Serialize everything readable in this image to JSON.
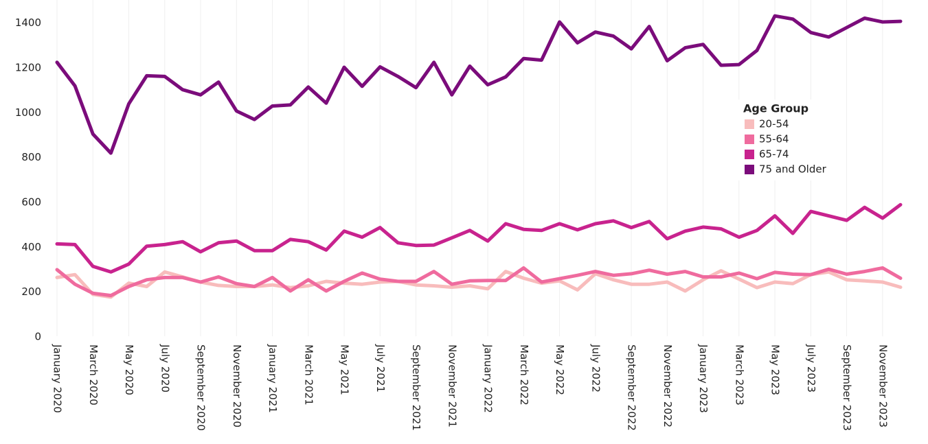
{
  "chart_data": {
    "type": "line",
    "categories": [
      "January 2020",
      null,
      "March 2020",
      null,
      "May 2020",
      null,
      "July 2020",
      null,
      "September 2020",
      null,
      "November 2020",
      null,
      "January 2021",
      null,
      "March 2021",
      null,
      "May 2021",
      null,
      "July 2021",
      null,
      "September 2021",
      null,
      "November 2021",
      null,
      "January 2022",
      null,
      "March 2022",
      null,
      "May 2022",
      null,
      "July 2022",
      null,
      "September 2022",
      null,
      "November 2022",
      null,
      "January 2023",
      null,
      "March 2023",
      null,
      "May 2023",
      null,
      "July 2023",
      null,
      "September 2023",
      null,
      "November 2023",
      null
    ],
    "series": [
      {
        "name": "20-54",
        "color": "#f8bcbc",
        "values": [
          265,
          278,
          190,
          178,
          240,
          225,
          290,
          268,
          245,
          230,
          225,
          225,
          232,
          220,
          228,
          248,
          240,
          235,
          245,
          248,
          232,
          228,
          222,
          228,
          215,
          292,
          262,
          240,
          250,
          210,
          282,
          255,
          235,
          235,
          245,
          205,
          255,
          295,
          258,
          220,
          245,
          238,
          278,
          290,
          255,
          250,
          245,
          222
        ]
      },
      {
        "name": "55-64",
        "color": "#ef6b9e",
        "values": [
          300,
          235,
          195,
          185,
          225,
          255,
          265,
          265,
          245,
          268,
          238,
          225,
          265,
          205,
          255,
          205,
          248,
          285,
          258,
          248,
          248,
          292,
          235,
          250,
          252,
          252,
          308,
          245,
          260,
          275,
          292,
          275,
          282,
          298,
          280,
          292,
          268,
          268,
          285,
          260,
          288,
          280,
          278,
          302,
          280,
          292,
          308,
          262
        ]
      },
      {
        "name": "65-74",
        "color": "#c8238e",
        "values": [
          415,
          412,
          315,
          290,
          325,
          405,
          412,
          425,
          380,
          420,
          428,
          385,
          385,
          435,
          425,
          388,
          472,
          445,
          488,
          420,
          408,
          410,
          442,
          475,
          428,
          505,
          480,
          475,
          505,
          478,
          505,
          518,
          488,
          515,
          438,
          472,
          490,
          482,
          445,
          475,
          540,
          462,
          560,
          540,
          520,
          578,
          530,
          590
        ]
      },
      {
        "name": "75 and Older",
        "color": "#7b0c7b",
        "values": [
          1225,
          1120,
          905,
          820,
          1040,
          1165,
          1162,
          1103,
          1080,
          1137,
          1008,
          970,
          1030,
          1035,
          1115,
          1043,
          1203,
          1118,
          1205,
          1162,
          1112,
          1225,
          1080,
          1208,
          1125,
          1160,
          1242,
          1235,
          1405,
          1312,
          1360,
          1342,
          1285,
          1385,
          1232,
          1290,
          1305,
          1212,
          1215,
          1278,
          1432,
          1418,
          1358,
          1338,
          1380,
          1422,
          1405,
          1408
        ]
      }
    ],
    "legend_title": "Age Group",
    "legend_position": "upper right",
    "ylim": [
      0,
      1500
    ],
    "yticks": [
      0,
      200,
      400,
      600,
      800,
      1000,
      1200,
      1400
    ],
    "grid": true
  }
}
